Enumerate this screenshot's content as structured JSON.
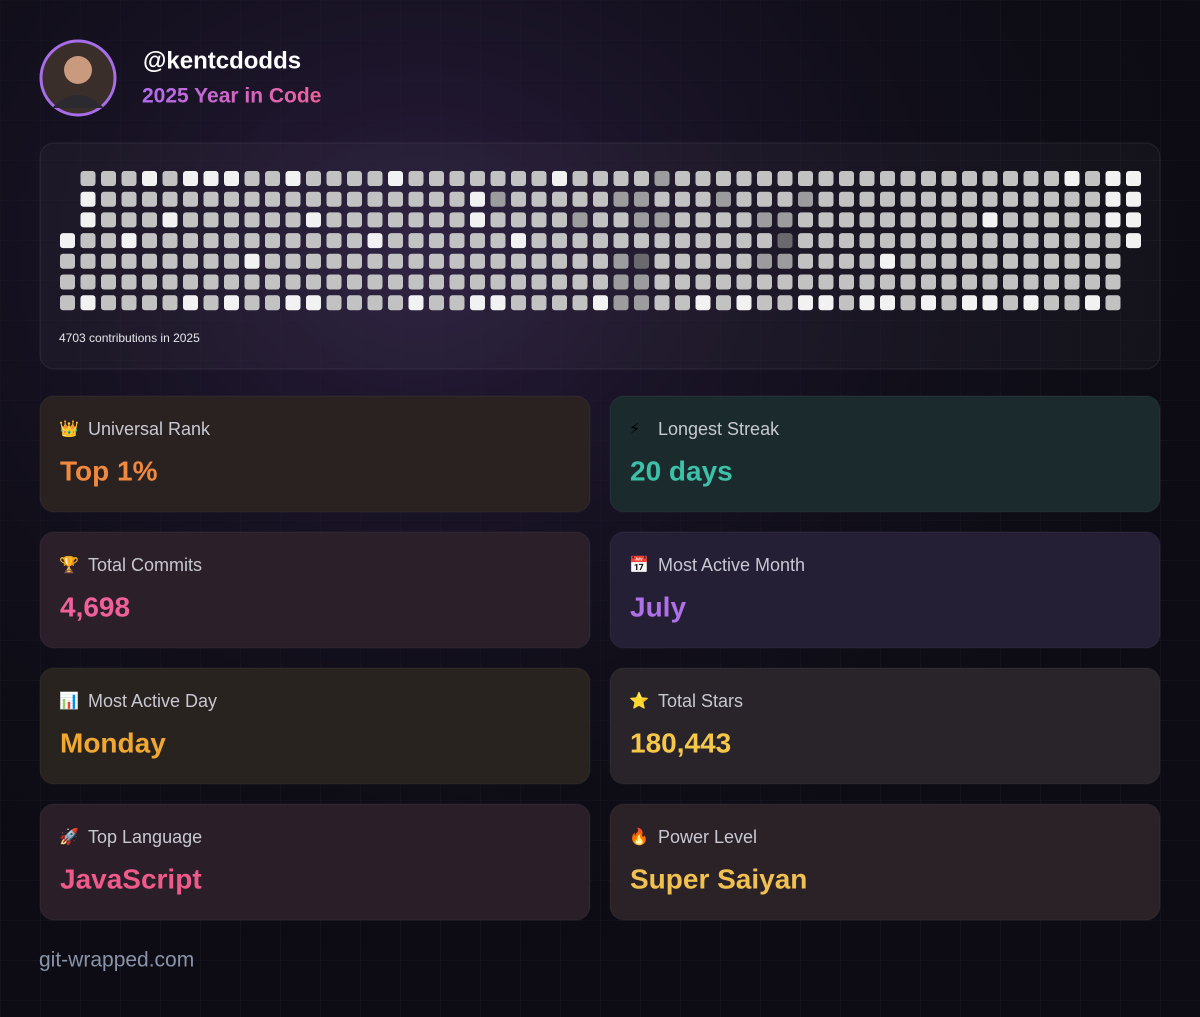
{
  "header": {
    "username": "@kentcdodds",
    "subtitle": "2025 Year in Code"
  },
  "contributions": {
    "caption": "4703 contributions in 2025",
    "weeks": [
      [
        null,
        null,
        null,
        4,
        3,
        3,
        3
      ],
      [
        3,
        4,
        4,
        3,
        3,
        3,
        4
      ],
      [
        3,
        3,
        3,
        3,
        3,
        3,
        3
      ],
      [
        3,
        3,
        3,
        4,
        3,
        3,
        3
      ],
      [
        4,
        3,
        3,
        3,
        3,
        3,
        3
      ],
      [
        3,
        3,
        4,
        3,
        3,
        3,
        3
      ],
      [
        4,
        3,
        3,
        3,
        3,
        3,
        4
      ],
      [
        4,
        3,
        3,
        3,
        3,
        3,
        3
      ],
      [
        4,
        3,
        3,
        3,
        3,
        3,
        4
      ],
      [
        3,
        3,
        3,
        3,
        4,
        3,
        3
      ],
      [
        3,
        3,
        3,
        3,
        3,
        3,
        3
      ],
      [
        4,
        3,
        3,
        3,
        3,
        3,
        4
      ],
      [
        3,
        3,
        4,
        3,
        3,
        3,
        4
      ],
      [
        3,
        3,
        3,
        3,
        3,
        3,
        3
      ],
      [
        3,
        3,
        3,
        3,
        3,
        3,
        3
      ],
      [
        3,
        3,
        3,
        4,
        3,
        3,
        3
      ],
      [
        4,
        3,
        3,
        3,
        3,
        3,
        3
      ],
      [
        3,
        3,
        3,
        3,
        3,
        3,
        4
      ],
      [
        3,
        3,
        3,
        3,
        3,
        3,
        3
      ],
      [
        3,
        3,
        3,
        3,
        3,
        3,
        3
      ],
      [
        3,
        4,
        4,
        3,
        3,
        3,
        4
      ],
      [
        3,
        2,
        3,
        3,
        3,
        3,
        4
      ],
      [
        3,
        3,
        3,
        4,
        3,
        3,
        3
      ],
      [
        3,
        3,
        3,
        3,
        3,
        3,
        3
      ],
      [
        4,
        3,
        3,
        3,
        3,
        3,
        3
      ],
      [
        3,
        3,
        2,
        3,
        3,
        3,
        3
      ],
      [
        3,
        3,
        3,
        3,
        3,
        3,
        4
      ],
      [
        3,
        2,
        3,
        3,
        2,
        2,
        2
      ],
      [
        3,
        2,
        2,
        3,
        1,
        2,
        2
      ],
      [
        2,
        3,
        2,
        3,
        3,
        3,
        3
      ],
      [
        3,
        3,
        3,
        3,
        3,
        3,
        3
      ],
      [
        3,
        3,
        3,
        3,
        3,
        3,
        4
      ],
      [
        3,
        2,
        3,
        3,
        3,
        3,
        3
      ],
      [
        3,
        3,
        3,
        3,
        3,
        3,
        4
      ],
      [
        3,
        3,
        2,
        3,
        2,
        3,
        3
      ],
      [
        3,
        3,
        2,
        1,
        2,
        3,
        3
      ],
      [
        3,
        2,
        3,
        3,
        3,
        3,
        4
      ],
      [
        3,
        3,
        3,
        3,
        3,
        3,
        4
      ],
      [
        3,
        3,
        3,
        3,
        3,
        3,
        3
      ],
      [
        3,
        3,
        3,
        3,
        3,
        3,
        4
      ],
      [
        3,
        3,
        3,
        3,
        4,
        3,
        4
      ],
      [
        3,
        3,
        3,
        3,
        3,
        3,
        3
      ],
      [
        3,
        3,
        3,
        3,
        3,
        3,
        4
      ],
      [
        3,
        3,
        3,
        3,
        3,
        3,
        3
      ],
      [
        3,
        3,
        3,
        3,
        3,
        3,
        4
      ],
      [
        3,
        3,
        4,
        3,
        3,
        3,
        4
      ],
      [
        3,
        3,
        3,
        3,
        3,
        3,
        3
      ],
      [
        3,
        3,
        3,
        3,
        3,
        3,
        4
      ],
      [
        3,
        3,
        3,
        3,
        3,
        3,
        3
      ],
      [
        4,
        3,
        3,
        3,
        3,
        3,
        3
      ],
      [
        3,
        3,
        3,
        3,
        3,
        3,
        4
      ],
      [
        4,
        4,
        4,
        3,
        3,
        3,
        3
      ],
      [
        4,
        4,
        4,
        4,
        null,
        null,
        null
      ]
    ]
  },
  "cards": [
    {
      "icon": "👑",
      "label": "Universal Rank",
      "value": "Top 1%"
    },
    {
      "icon": "⚡",
      "label": "Longest Streak",
      "value": "20 days"
    },
    {
      "icon": "🏆",
      "label": "Total Commits",
      "value": "4,698"
    },
    {
      "icon": "📅",
      "label": "Most Active Month",
      "value": "July"
    },
    {
      "icon": "📊",
      "label": "Most Active Day",
      "value": "Monday"
    },
    {
      "icon": "⭐",
      "label": "Total Stars",
      "value": "180,443"
    },
    {
      "icon": "🚀",
      "label": "Top Language",
      "value": "JavaScript"
    },
    {
      "icon": "🔥",
      "label": "Power Level",
      "value": "Super Saiyan"
    }
  ],
  "footer": "git-wrapped.com"
}
